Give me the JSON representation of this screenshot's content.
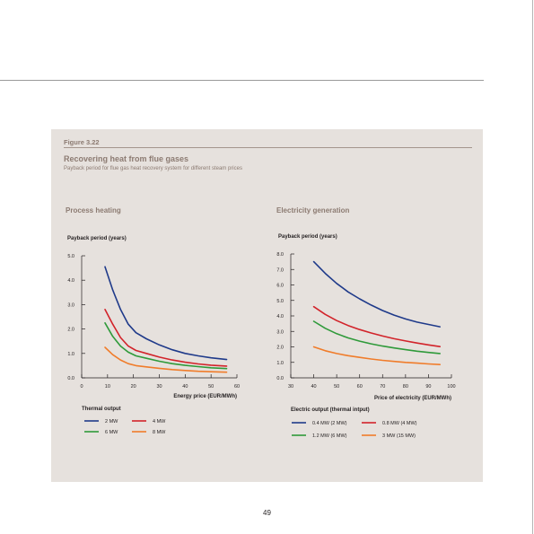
{
  "page": {
    "number": "49"
  },
  "figure": {
    "number": "Figure 3.22",
    "title": "Recovering heat from flue gases",
    "subtitle": "Payback period for flue gas heat recovery system for different steam prices"
  },
  "colors": {
    "dark_blue": "#1f3a8a",
    "red": "#d2232a",
    "green": "#2f9a3a",
    "orange": "#f07c2a",
    "panel": "#e6e1dd",
    "heading": "#8c7b72"
  },
  "chart_data": [
    {
      "type": "line",
      "title": "Process heating",
      "xlabel": "Energy price (EUR/MWh)",
      "ylabel": "Payback period (years)",
      "xlim": [
        0,
        60
      ],
      "ylim": [
        0,
        5
      ],
      "xticks": [
        "0",
        "10",
        "20",
        "30",
        "40",
        "50",
        "60"
      ],
      "yticks": [
        "0.0",
        "1.0",
        "2.0",
        "3.0",
        "4.0",
        "5.0"
      ],
      "legend_title": "Thermal output",
      "series": [
        {
          "name": "2 MW",
          "color": "#1f3a8a",
          "x": [
            9,
            12,
            15,
            18,
            21,
            25,
            30,
            35,
            40,
            45,
            50,
            56
          ],
          "y": [
            4.55,
            3.6,
            2.8,
            2.2,
            1.85,
            1.6,
            1.35,
            1.15,
            1.0,
            0.9,
            0.82,
            0.75
          ]
        },
        {
          "name": "4 MW",
          "color": "#d2232a",
          "x": [
            9,
            12,
            15,
            18,
            21,
            25,
            30,
            35,
            40,
            45,
            50,
            56
          ],
          "y": [
            2.8,
            2.2,
            1.65,
            1.3,
            1.12,
            1.0,
            0.85,
            0.73,
            0.64,
            0.57,
            0.52,
            0.48
          ]
        },
        {
          "name": "6 MW",
          "color": "#2f9a3a",
          "x": [
            9,
            12,
            15,
            18,
            21,
            25,
            30,
            35,
            40,
            45,
            50,
            56
          ],
          "y": [
            2.25,
            1.7,
            1.3,
            1.05,
            0.9,
            0.8,
            0.68,
            0.58,
            0.51,
            0.46,
            0.41,
            0.38
          ]
        },
        {
          "name": "8 MW",
          "color": "#f07c2a",
          "x": [
            9,
            12,
            15,
            18,
            21,
            25,
            30,
            35,
            40,
            45,
            50,
            56
          ],
          "y": [
            1.25,
            0.95,
            0.73,
            0.58,
            0.5,
            0.45,
            0.39,
            0.34,
            0.3,
            0.27,
            0.25,
            0.23
          ]
        }
      ]
    },
    {
      "type": "line",
      "title": "Electricity generation",
      "xlabel": "Price of electricity (EUR/MWh)",
      "ylabel": "Payback period (years)",
      "xlim": [
        30,
        100
      ],
      "ylim": [
        0,
        8
      ],
      "xticks": [
        "30",
        "40",
        "50",
        "60",
        "70",
        "80",
        "90",
        "100"
      ],
      "yticks": [
        "0.0",
        "1.0",
        "2.0",
        "3.0",
        "4.0",
        "5.0",
        "6.0",
        "7.0",
        "8.0"
      ],
      "legend_title": "Electric output (thermal intput)",
      "series": [
        {
          "name": "0.4 MW (2 MW)",
          "color": "#1f3a8a",
          "x": [
            40,
            45,
            50,
            55,
            60,
            65,
            70,
            75,
            80,
            85,
            90,
            95
          ],
          "y": [
            7.5,
            6.75,
            6.1,
            5.55,
            5.1,
            4.7,
            4.35,
            4.05,
            3.8,
            3.6,
            3.45,
            3.3
          ]
        },
        {
          "name": "0.8 MW (4 MW)",
          "color": "#d2232a",
          "x": [
            40,
            45,
            50,
            55,
            60,
            65,
            70,
            75,
            80,
            85,
            90,
            95
          ],
          "y": [
            4.6,
            4.1,
            3.7,
            3.38,
            3.12,
            2.9,
            2.7,
            2.53,
            2.38,
            2.25,
            2.13,
            2.02
          ]
        },
        {
          "name": "1.2 MW (6 MW)",
          "color": "#2f9a3a",
          "x": [
            40,
            45,
            50,
            55,
            60,
            65,
            70,
            75,
            80,
            85,
            90,
            95
          ],
          "y": [
            3.65,
            3.2,
            2.85,
            2.58,
            2.37,
            2.2,
            2.05,
            1.93,
            1.82,
            1.72,
            1.64,
            1.57
          ]
        },
        {
          "name": "3 MW (15 MW)",
          "color": "#f07c2a",
          "x": [
            40,
            45,
            50,
            55,
            60,
            65,
            70,
            75,
            80,
            85,
            90,
            95
          ],
          "y": [
            2.0,
            1.75,
            1.57,
            1.43,
            1.32,
            1.22,
            1.13,
            1.06,
            1.0,
            0.95,
            0.9,
            0.86
          ]
        }
      ]
    }
  ]
}
